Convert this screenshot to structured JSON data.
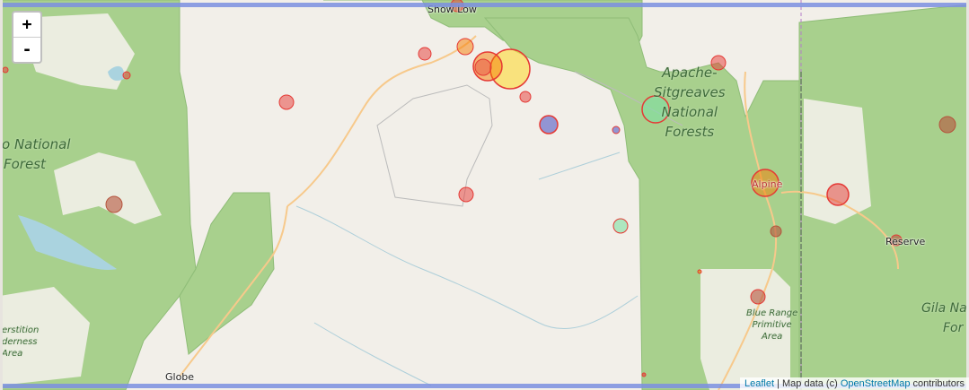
{
  "zoom": {
    "in_label": "+",
    "out_label": "-"
  },
  "places": {
    "show_low": "Show Low",
    "globe": "Globe",
    "reserve": "Reserve",
    "alpine": "Alpine"
  },
  "forests": {
    "apache_1": "Apache-",
    "apache_2": "Sitgreaves",
    "apache_3": "National",
    "apache_4": "Forests",
    "tonto_1": "o National",
    "tonto_2": "Forest",
    "wild_1": "erstition",
    "wild_2": "derness",
    "wild_3": "Area",
    "blue_1": "Blue Range",
    "blue_2": "Primitive",
    "blue_3": "Area",
    "gila_1": "Gila Na",
    "gila_2": "For"
  },
  "attribution": {
    "leaflet": "Leaflet",
    "sep": " | Map data (c) ",
    "osm": "OpenStreetMap",
    "tail": " contributors"
  },
  "colors": {
    "marker_red": "#e53935",
    "marker_orange": "#f57c00",
    "marker_yellow": "#fdd835",
    "marker_brown": "#b5533c",
    "marker_blue": "#6a6fc9",
    "marker_green": "#7ee0a4",
    "forest": "#a8d08d",
    "background": "#f2efe9"
  }
}
